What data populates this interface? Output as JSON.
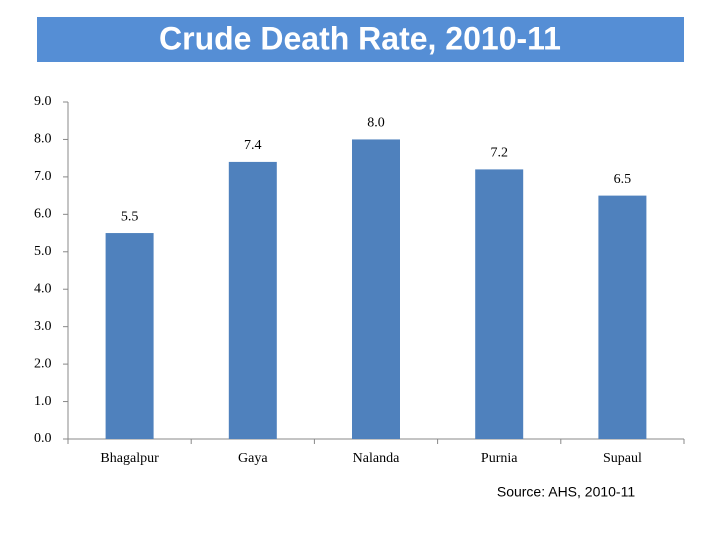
{
  "chart_data": {
    "type": "bar",
    "title": "Crude Death Rate, 2010-11",
    "categories": [
      "Bhagalpur",
      "Gaya",
      "Nalanda",
      "Purnia",
      "Supaul"
    ],
    "values": [
      5.5,
      7.4,
      8,
      7.2,
      6.5
    ],
    "value_labels": [
      "5.5",
      "7.4",
      "8.0",
      "7.2",
      "6.5"
    ],
    "color": "#4f81bd",
    "ylim": [
      0,
      9
    ],
    "yticks": [
      {
        "value": 0,
        "label": "0.0"
      },
      {
        "value": 1,
        "label": "1.0"
      },
      {
        "value": 2,
        "label": "2.0"
      },
      {
        "value": 3,
        "label": "3.0"
      },
      {
        "value": 4,
        "label": "4.0"
      },
      {
        "value": 5,
        "label": "5.0"
      },
      {
        "value": 6,
        "label": "6.0"
      },
      {
        "value": 7,
        "label": "7.0"
      },
      {
        "value": 8,
        "label": "8.0"
      },
      {
        "value": 9,
        "label": "9.0"
      }
    ],
    "grid": false,
    "source": "Source: AHS, 2010-11"
  }
}
